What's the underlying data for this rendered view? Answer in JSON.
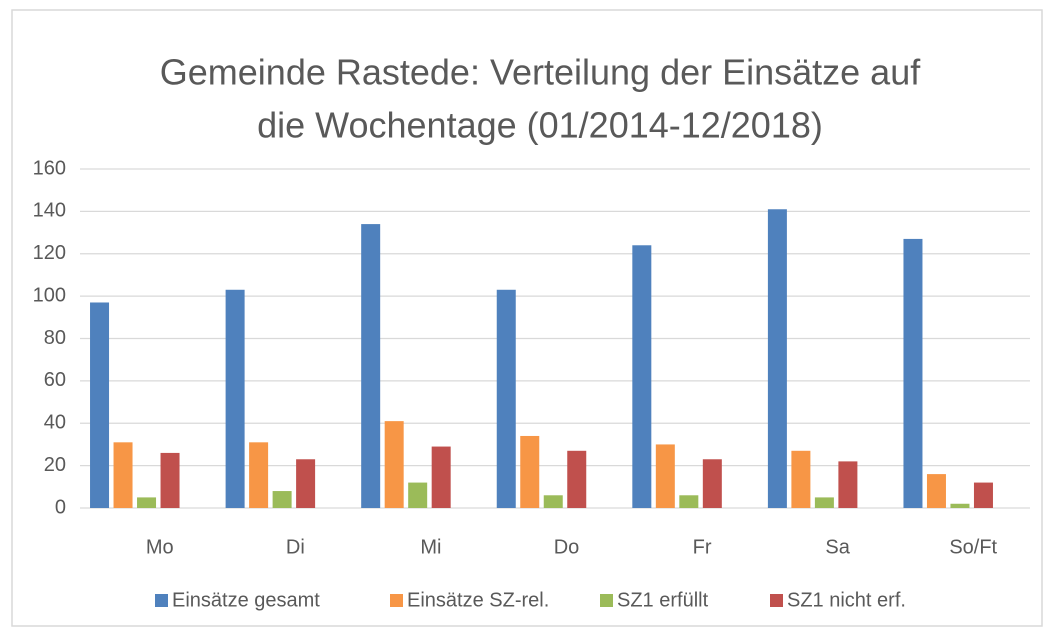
{
  "chart_data": {
    "type": "bar",
    "title": [
      "Gemeinde Rastede: Verteilung der Einsätze auf",
      "die Wochentage (01/2014-12/2018)"
    ],
    "categories": [
      "Mo",
      "Di",
      "Mi",
      "Do",
      "Fr",
      "Sa",
      "So/Ft"
    ],
    "series": [
      {
        "name": "Einsätze gesamt",
        "color": "#4f81bd",
        "values": [
          97,
          103,
          134,
          103,
          124,
          141,
          127
        ]
      },
      {
        "name": "Einsätze SZ-rel.",
        "color": "#f79646",
        "values": [
          31,
          31,
          41,
          34,
          30,
          27,
          16
        ]
      },
      {
        "name": "SZ1 erfüllt",
        "color": "#9bbb59",
        "values": [
          5,
          8,
          12,
          6,
          6,
          5,
          2
        ]
      },
      {
        "name": "SZ1 nicht erf.",
        "color": "#c0504d",
        "values": [
          26,
          23,
          29,
          27,
          23,
          22,
          12
        ]
      }
    ],
    "ylim": [
      0,
      160
    ],
    "yticks": [
      0,
      20,
      40,
      60,
      80,
      100,
      120,
      140,
      160
    ],
    "grid": true,
    "legend": "bottom"
  }
}
